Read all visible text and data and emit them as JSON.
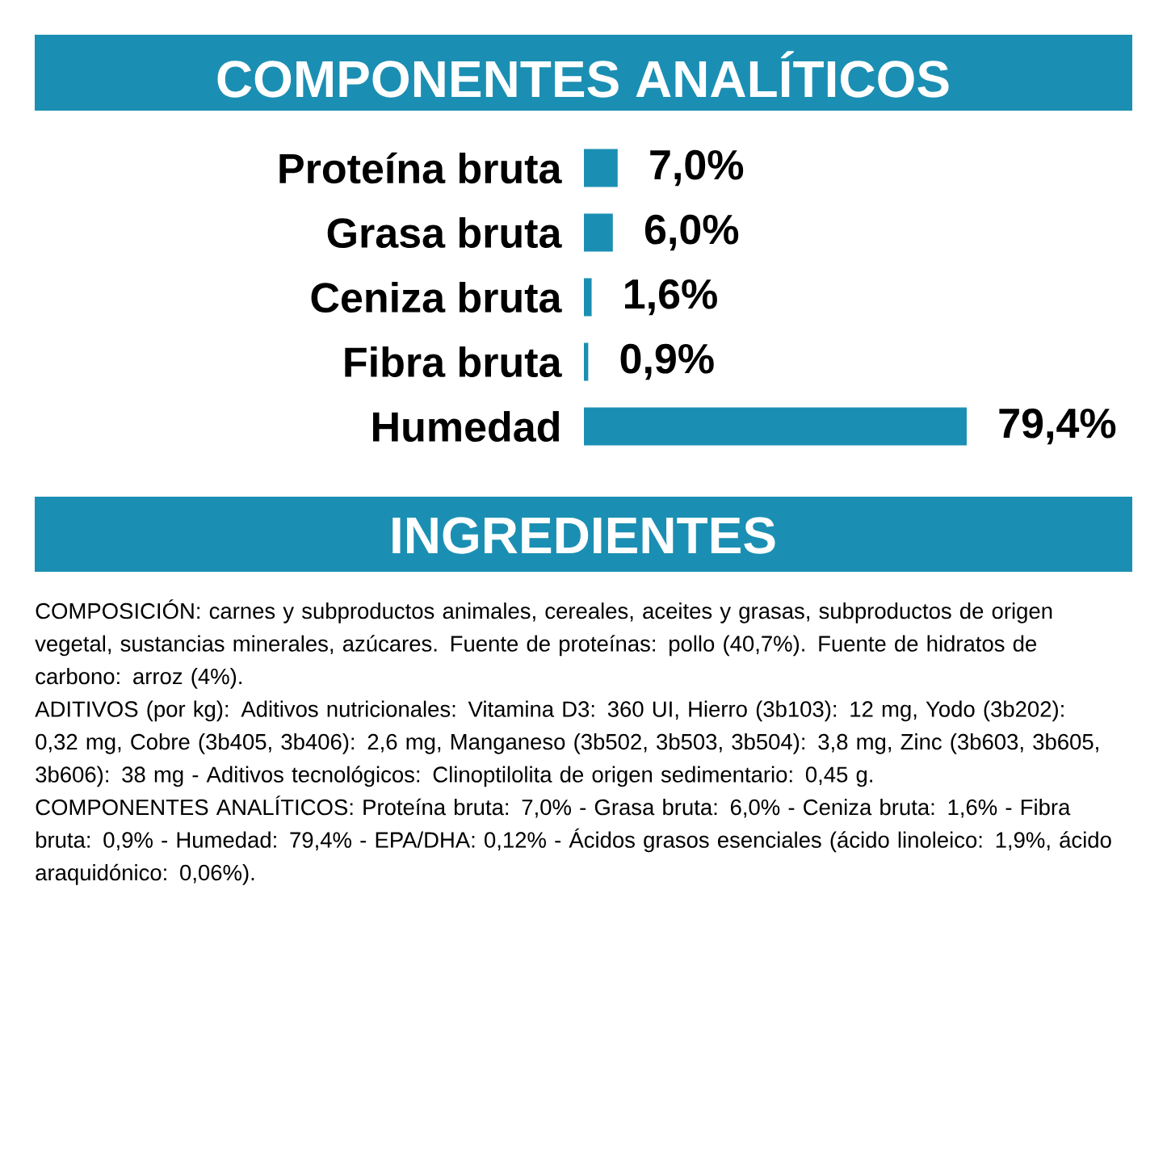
{
  "chart_data": {
    "type": "bar",
    "orientation": "horizontal",
    "title": "COMPONENTES ANALÍTICOS",
    "categories": [
      "Proteína bruta",
      "Grasa bruta",
      "Ceniza bruta",
      "Fibra bruta",
      "Humedad"
    ],
    "values": [
      7.0,
      6.0,
      1.6,
      0.9,
      79.4
    ],
    "value_labels": [
      "7,0%",
      "6,0%",
      "1,6%",
      "0,9%",
      "79,4%"
    ],
    "color": "#1b8fb3",
    "tick_labels": "y",
    "annotations": [
      "INGREDIENTES",
      "COMPOSICIÓN: carnes y subproductos animales, cereales, aceites y grasas, subproductos de origen vegetal, sustancias minerales, azúcares. Fuente de proteínas: pollo (40,7%). Fuente de hidratos de carbono: arroz (4%).",
      "ADITIVOS (por kg): Aditivos nutricionales: Vitamina D3: 360 UI, Hierro (3b103): 12 mg, Yodo (3b202): 0,32 mg, Cobre (3b405, 3b406): 2,6 mg, Manganeso (3b502, 3b503, 3b504): 3,8 mg, Zinc (3b603, 3b605, 3b606): 38 mg - Aditivos tecnológicos: Clinoptilolita de origen sedimentario: 0,45 g.",
      "COMPONENTES ANALÍTICOS: Proteína bruta: 7,0% - Grasa bruta: 6,0% - Ceniza bruta: 1,6% - Fibra bruta: 0,9% - Humedad: 79,4% - EPA/DHA: 0,12% - Ácidos grasos esenciales (ácido linoleico: 1,9%, ácido araquidónico: 0,06%)."
    ]
  }
}
